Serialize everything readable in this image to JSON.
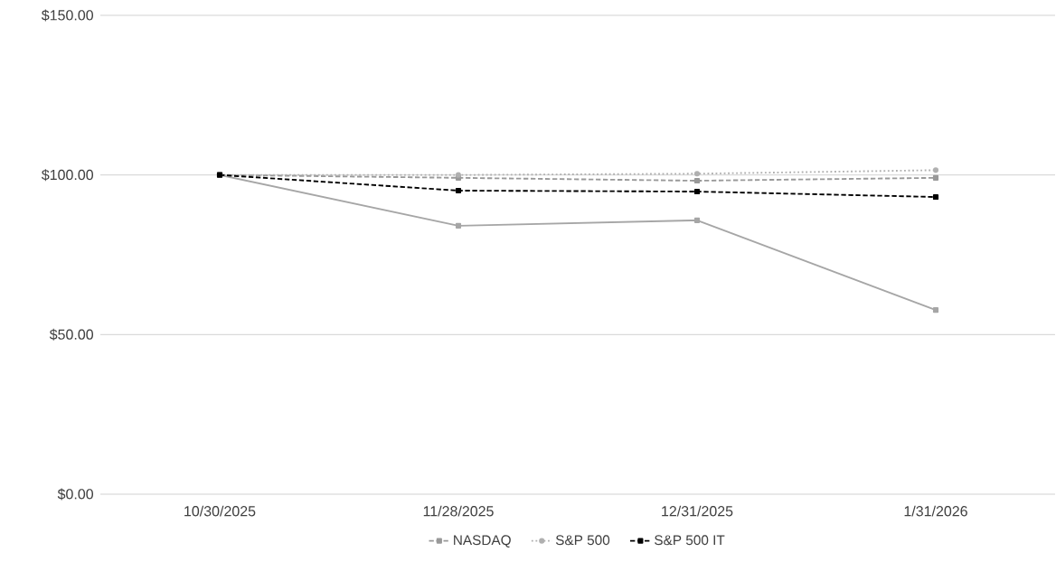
{
  "chart_data": {
    "type": "line",
    "categories": [
      "10/30/2025",
      "11/28/2025",
      "12/31/2025",
      "1/31/2026"
    ],
    "series": [
      {
        "color": "#a6a6a6",
        "line_style": "solid",
        "marker": "square",
        "values": [
          100,
          84.1,
          85.8,
          57.7
        ]
      },
      {
        "name": "NASDAQ",
        "color": "#999999",
        "line_style": "dashed",
        "marker": "square",
        "values": [
          100,
          99.1,
          98.2,
          99.1
        ]
      },
      {
        "name": "S&P 500",
        "color": "#b0b0b0",
        "line_style": "dotted",
        "marker": "circle",
        "values": [
          100,
          100,
          100.4,
          101.5
        ]
      },
      {
        "name": "S&P 500 IT",
        "color": "#000000",
        "line_style": "dashed",
        "marker": "square",
        "values": [
          100,
          95.1,
          94.8,
          93.1
        ]
      }
    ],
    "ylim": [
      0,
      150
    ],
    "yticks": [
      {
        "value": 0,
        "label": "$0.00"
      },
      {
        "value": 50,
        "label": "$50.00"
      },
      {
        "value": 100,
        "label": "$100.00"
      },
      {
        "value": 150,
        "label": "$150.00"
      }
    ],
    "grid": "y",
    "legend": "bottom"
  }
}
